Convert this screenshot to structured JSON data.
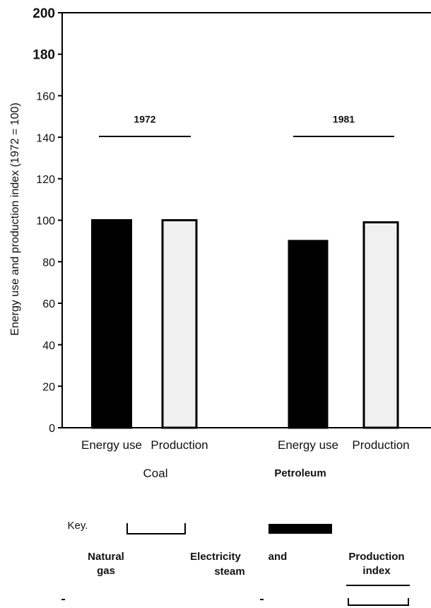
{
  "chart_data": {
    "type": "bar",
    "y_label": "Energy use and production index (1972 = 100)",
    "categories": [
      "Energy use",
      "Production",
      "Energy use",
      "Production"
    ],
    "values": [
      100,
      100,
      90,
      99
    ],
    "colors": [
      "#000000",
      "#f0f0f0",
      "#000000",
      "#f0f0f0"
    ],
    "groups": [
      "1972",
      "1981"
    ],
    "ylim": [
      0,
      200
    ],
    "yticks": [
      0,
      20,
      40,
      60,
      80,
      100,
      120,
      140,
      160,
      180,
      200
    ],
    "key": {
      "title": "Key.",
      "labels": [
        "Coal",
        "Petroleum",
        "Natural gas",
        "Electricity",
        "and",
        "steam",
        "Production index"
      ]
    }
  }
}
